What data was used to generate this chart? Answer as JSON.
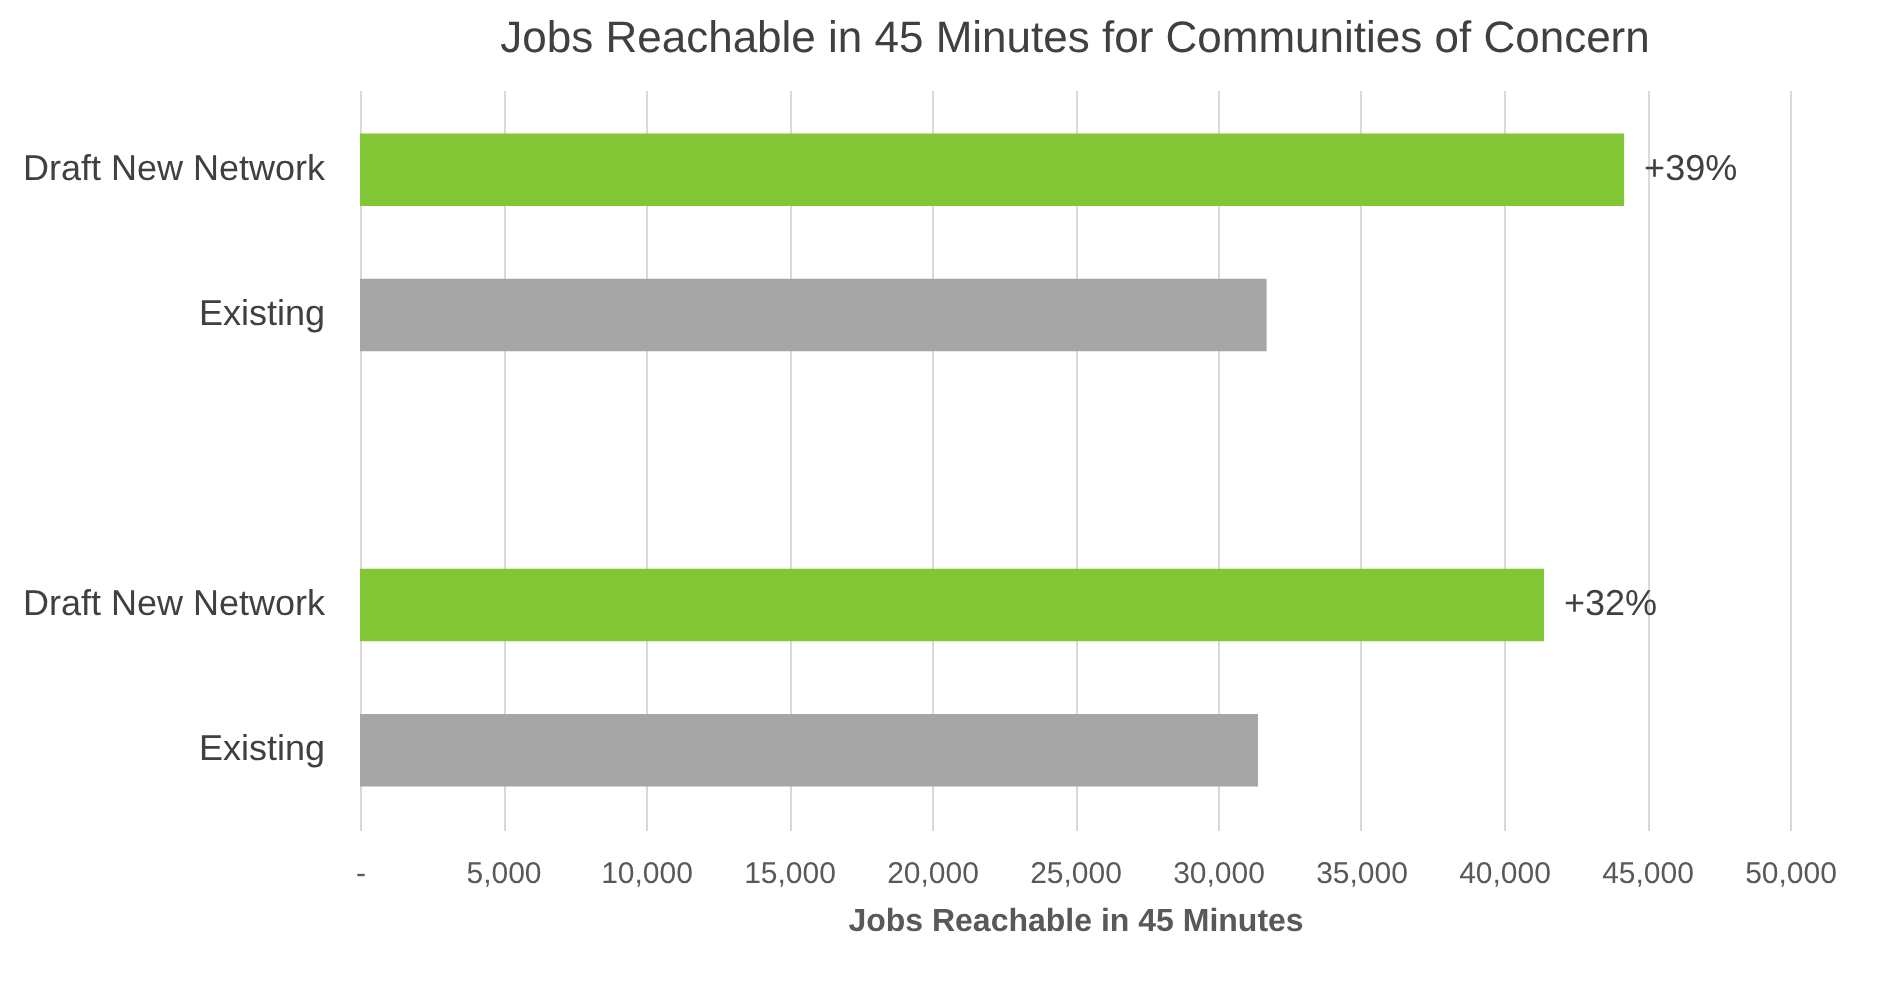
{
  "chart_data": {
    "type": "bar",
    "orientation": "horizontal",
    "title": "Jobs Reachable in 45 Minutes for Communities of Concern",
    "xlabel": "Jobs Reachable in 45 Minutes",
    "categories": [
      "Draft New Network",
      "Existing",
      null,
      "Draft New Network",
      "Existing"
    ],
    "values": [
      44200,
      31700,
      null,
      41400,
      31400
    ],
    "colors": [
      "#82c636",
      "#a6a6a6",
      "#a6a6a6",
      "#82c636",
      "#a6a6a6"
    ],
    "annotations": [
      "+39%",
      "+32%"
    ],
    "xlim": [
      0,
      50000
    ],
    "xticks": [
      {
        "value": 0,
        "label": "-"
      },
      {
        "value": 5000,
        "label": "5,000"
      },
      {
        "value": 10000,
        "label": "10,000"
      },
      {
        "value": 15000,
        "label": "15,000"
      },
      {
        "value": 20000,
        "label": "20,000"
      },
      {
        "value": 25000,
        "label": "25,000"
      },
      {
        "value": 30000,
        "label": "30,000"
      },
      {
        "value": 35000,
        "label": "35,000"
      },
      {
        "value": 40000,
        "label": "40,000"
      },
      {
        "value": 45000,
        "label": "45,000"
      },
      {
        "value": 50000,
        "label": "50,000"
      }
    ],
    "grid": "x",
    "legend": false
  }
}
